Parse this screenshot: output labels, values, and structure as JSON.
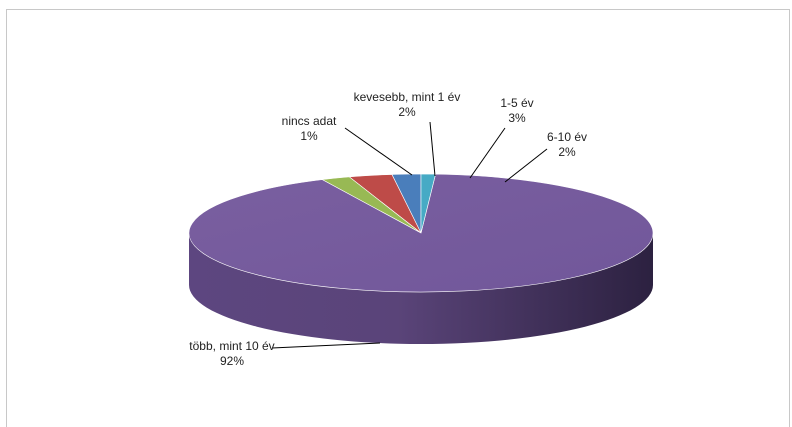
{
  "chart_data": {
    "type": "pie",
    "style": "3d",
    "title": "",
    "slices": [
      {
        "label": "kevesebb, mint 1 év",
        "pct_label": "2%",
        "value": 2,
        "color": "#4a7ebb"
      },
      {
        "label": "1-5 év",
        "pct_label": "3%",
        "value": 3,
        "color": "#be4b48"
      },
      {
        "label": "6-10 év",
        "pct_label": "2%",
        "value": 2,
        "color": "#98b954"
      },
      {
        "label": "több, mint 10 év",
        "pct_label": "92%",
        "value": 92,
        "color": "#7d60a0"
      },
      {
        "label": "nincs adat",
        "pct_label": "1%",
        "value": 1,
        "color": "#46aac5"
      }
    ],
    "legend": "none",
    "labels": "outside-with-leader-lines"
  }
}
